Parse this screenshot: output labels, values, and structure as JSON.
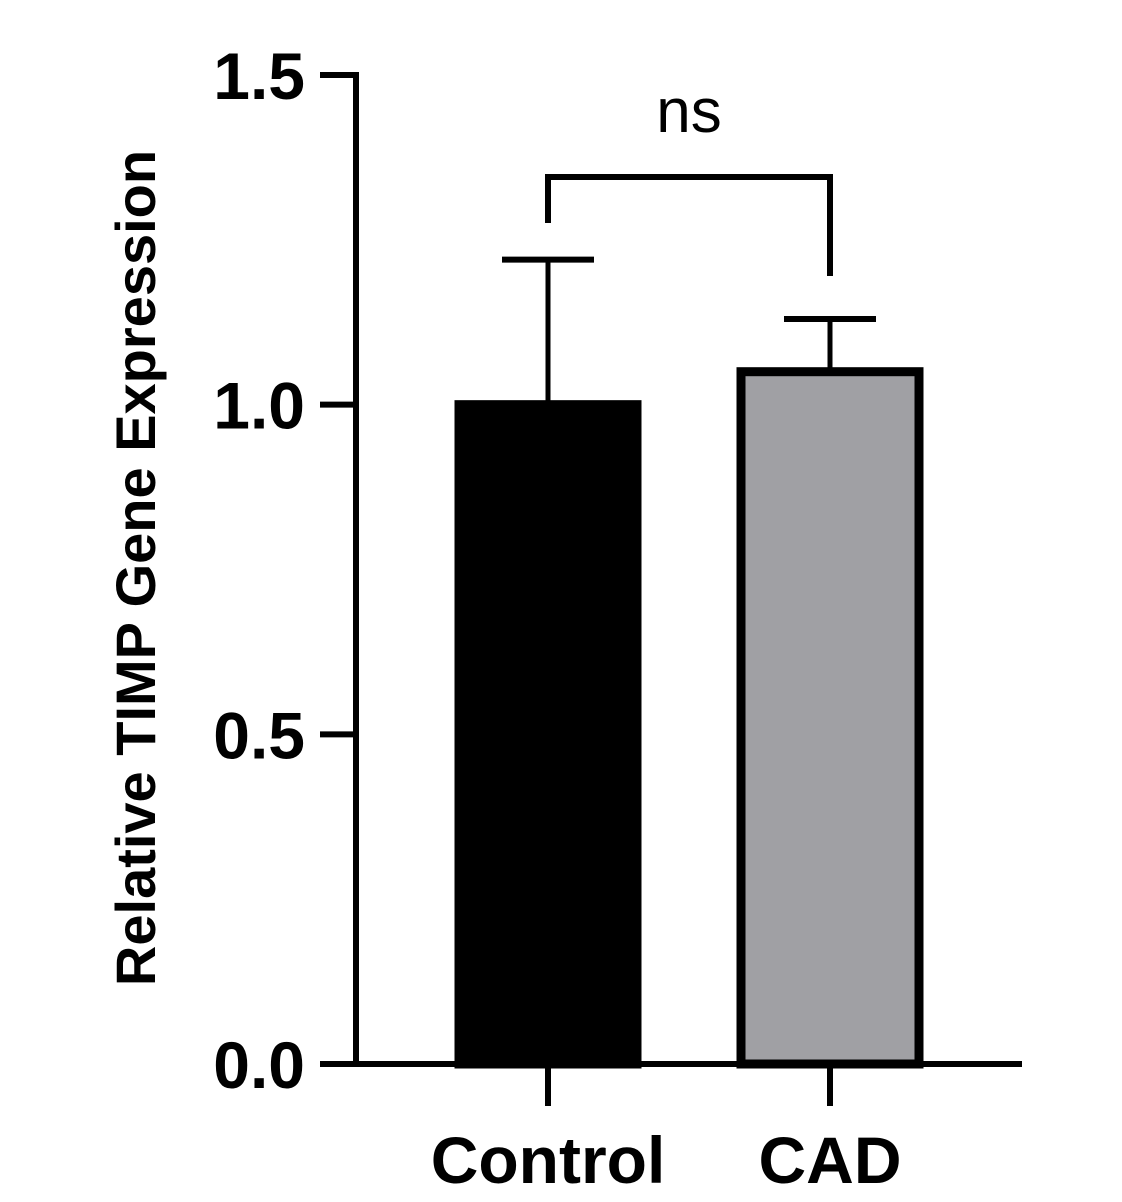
{
  "chart_data": {
    "type": "bar",
    "categories": [
      "Control",
      "CAD"
    ],
    "values": [
      1.0,
      1.05
    ],
    "error_upper": [
      1.22,
      1.13
    ],
    "colors": [
      "#000000",
      "#a0a0a4"
    ],
    "edge_color": "#000000",
    "title": "",
    "xlabel": "",
    "ylabel": "Relative TIMP Gene Expression",
    "ylim": [
      0,
      1.5
    ],
    "yticks": [
      0.0,
      0.5,
      1.0,
      1.5
    ],
    "ytick_labels": [
      "0.0",
      "0.5",
      "1.0",
      "1.5"
    ],
    "grid": false,
    "legend": "none",
    "annotations": [
      {
        "type": "significance-bracket",
        "between": [
          "Control",
          "CAD"
        ],
        "text": "ns"
      }
    ]
  }
}
